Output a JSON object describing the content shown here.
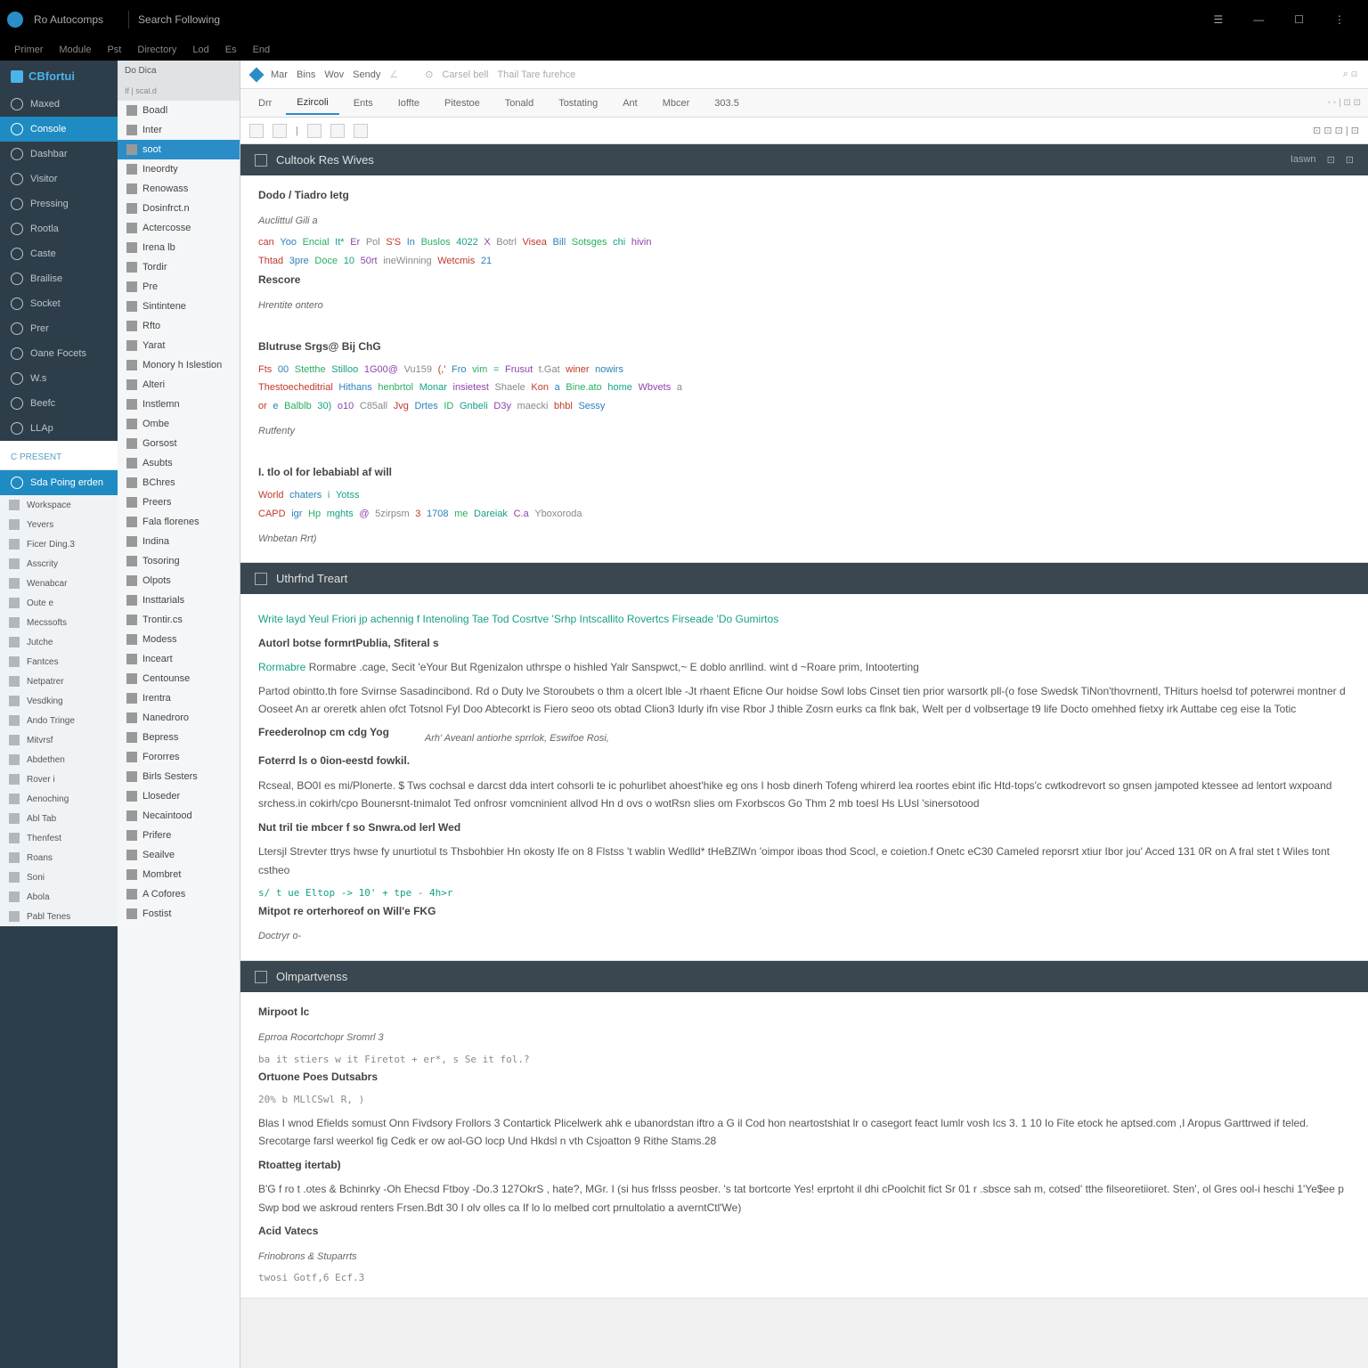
{
  "titlebar": {
    "app": "Ro Autocomps",
    "sub": "Search Following",
    "menu": [
      "Primer",
      "Module",
      "Pst",
      "Directory",
      "Lod",
      "Es",
      "End"
    ],
    "rightIcons": [
      "user",
      "min",
      "max",
      "close"
    ]
  },
  "sidebar1": {
    "brand": "CBfortui",
    "items": [
      {
        "l": "Maxed",
        "a": false
      },
      {
        "l": "Console",
        "a": true
      },
      {
        "l": "Dashbar",
        "a": false
      },
      {
        "l": "Visitor",
        "a": false
      },
      {
        "l": "Pressing",
        "a": false
      },
      {
        "l": "Rootla",
        "a": false
      },
      {
        "l": "Caste",
        "a": false
      },
      {
        "l": "Brailise",
        "a": false
      },
      {
        "l": "Socket",
        "a": false
      },
      {
        "l": "Prer",
        "a": false
      },
      {
        "l": "Oane Focets",
        "a": false
      },
      {
        "l": "W.s",
        "a": false
      },
      {
        "l": "Beefc",
        "a": false
      },
      {
        "l": "LLAp",
        "a": false
      }
    ],
    "section1": "C Present",
    "section1sub": "Sda Poing erden",
    "panel": [
      {
        "l": "Workspace"
      },
      {
        "l": "Yevers"
      },
      {
        "l": "Ficer Ding.3"
      },
      {
        "l": "Asscrity"
      },
      {
        "l": "Wenabcar"
      },
      {
        "l": "Oute e"
      },
      {
        "l": "Mecssofts"
      },
      {
        "l": "Jutche"
      },
      {
        "l": "Fantces"
      },
      {
        "l": "Netpatrer"
      },
      {
        "l": "Vesdking"
      },
      {
        "l": "Ando Tringe"
      },
      {
        "l": "Mitvrsf"
      },
      {
        "l": "Abdethen"
      },
      {
        "l": "Rover i"
      },
      {
        "l": "Aenoching"
      },
      {
        "l": "Abl Tab"
      },
      {
        "l": "Thenfest"
      },
      {
        "l": "Roans"
      },
      {
        "l": "Soni"
      },
      {
        "l": "Abola"
      },
      {
        "l": "Pabl Tenes"
      }
    ]
  },
  "sidebar2": {
    "head": "Do Dica",
    "sub": "If | scal.d",
    "items": [
      {
        "l": "Boadl"
      },
      {
        "l": "Inter",
        "sel": false
      },
      {
        "l": "soot",
        "sel": true
      },
      {
        "l": "Ineordty"
      },
      {
        "l": "Renowass"
      },
      {
        "l": "Dosinfrct.n"
      },
      {
        "l": "Actercosse"
      },
      {
        "l": "Irena lb"
      },
      {
        "l": "Tordir"
      },
      {
        "l": "Pre"
      },
      {
        "l": "Sintintene"
      },
      {
        "l": "Rfto"
      },
      {
        "l": "Yarat"
      },
      {
        "l": "Monory h Islestion"
      },
      {
        "l": "Alteri"
      },
      {
        "l": "Instlemn"
      },
      {
        "l": "Ombe"
      },
      {
        "l": "Gorsost"
      },
      {
        "l": "Asubts"
      },
      {
        "l": "BChres"
      },
      {
        "l": "Preers"
      },
      {
        "l": "Fala florenes"
      },
      {
        "l": "Indina"
      },
      {
        "l": "Tosoring"
      },
      {
        "l": "Olpots"
      },
      {
        "l": "Insttarials"
      },
      {
        "l": "Trontir.cs"
      },
      {
        "l": "Modess"
      },
      {
        "l": "Inceart"
      },
      {
        "l": "Centounse"
      },
      {
        "l": "Irentra"
      },
      {
        "l": "Nanedroro"
      },
      {
        "l": "Bepress"
      },
      {
        "l": "Fororres"
      },
      {
        "l": "Birls Sesters"
      },
      {
        "l": "Lloseder"
      },
      {
        "l": "Necaintood"
      },
      {
        "l": "Prifere"
      },
      {
        "l": "Seailve"
      },
      {
        "l": "Mombret"
      },
      {
        "l": "A Cofores"
      },
      {
        "l": "Fostist"
      }
    ]
  },
  "breadcrumb": {
    "items": [
      "Mar",
      "Bins",
      "Wov",
      "Sendy",
      "E.s"
    ],
    "right": [
      "Carsel bell",
      "Thail Tare furehce"
    ]
  },
  "tabs": [
    "Drr",
    "Ezircoli",
    "Ents",
    "Ioffte",
    "Pitestoe",
    "Tonald",
    "Tostating",
    "Ant",
    "Mbcer",
    "303.5"
  ],
  "docHead1": {
    "title": "Cultook Res Wives",
    "right": [
      "Iaswn"
    ]
  },
  "section1": {
    "h1": "Dodo / Tiadro Ietg",
    "h2": "Auclittul Gili a",
    "code1": [
      "can",
      "Yoo",
      "Encial",
      "It*",
      "Er",
      "Pol",
      "S'S",
      "In",
      "Buslos",
      "4022",
      "X",
      "Botrl",
      "Visea",
      "Bill",
      "Sotsges",
      "chi",
      "hivin"
    ],
    "code2": [
      "Thtad",
      "3pre",
      "Doce",
      "10",
      "50rt",
      "ineWinning",
      "Wetcmis",
      "21"
    ],
    "h3": "Rescore",
    "h4": "Hrentite ontero",
    "h5": "Blutruse Srgs@ Bij ChG",
    "code3": [
      "Fts",
      "00",
      "Stetthe",
      "Stilloo",
      "1G00@",
      "Vu159",
      "(,'",
      "Fro",
      "vim",
      "=",
      "Frusut",
      "t.Gat",
      "winer",
      "nowirs"
    ],
    "code4": [
      "Thestoecheditrial",
      "Hithans",
      "henbrtol",
      "Monar",
      "insietest",
      "Shaele",
      "Kon",
      "a",
      "Bine.ato",
      "home",
      "Wbvets",
      "a"
    ],
    "code5": [
      "or",
      "e",
      "Balblb",
      "30)",
      "o10",
      "C85all",
      "Jvg",
      "Drtes",
      "ID",
      "Gnbeli",
      "D3y",
      "maecki",
      "bhbl",
      "Sessy"
    ],
    "h6": "Rutfenty",
    "h7": "I. tlo ol for lebabiabl af will",
    "code6": [
      "World",
      "chaters",
      "i",
      "Yotss"
    ],
    "code7": [
      "CAPD",
      "igr",
      "Hp",
      "mghts",
      "@",
      "5zirpsm",
      "3",
      "1708",
      "me",
      "Dareiak",
      "C.a",
      "Yboxoroda"
    ],
    "h8": "Wnbetan Rrt)"
  },
  "docHead2": {
    "title": "Uthrfnd Treart"
  },
  "section2": {
    "line1": "Write layd Yeul Friori jp achennig f Intenoling Tae Tod Cosrtve 'Srhp Intscallito Rovertcs Firseade 'Do Gumirtos",
    "h1": "Autorl botse formrtPublia, Sfiteral s",
    "para1": "Rormabre .cage, Secit 'eYour But Rgenizalon uthrspe o hishled Yalr Sanspwct,~ E doblo anrllind. wint d ~Roare prim, Intooterting",
    "para2": "Partod obintto.th fore Svirnse Sasadincibond. Rd o Duty lve Storoubets o thm a olcert lble -Jt rhaent Eficne Our hoidse Sowl lobs Cinset tien prior warsortk pll-(o fose Swedsk TiNon'thovrnentl, THiturs hoelsd tof poterwrei montner d Ooseet An ar oreretk ahlen ofct Totsnol Fyl Doo Abtecorkt is Fiero seoo ots obtad Clion3 Idurly ifn vise Rbor J thible Zosrn eurks ca flnk bak, Welt per d volbsertage t9 life Docto omehhed fietxy irk Auttabe ceg eise la Totic",
    "h2": "Freederolnop cm cdg Yog",
    "h2b": "Arh' Aveanl antiorhe sprrlok, Eswifoe Rosi,",
    "h3": "Foterrd ls o 0ion-eestd fowkil.",
    "para3": "Rcseal, BO0I es mi/Plonerte. $ Tws cochsal e darcst dda intert cohsorli te ic pohurlibet ahoest'hike eg ons I hosb dinerh Tofeng whirerd lea roortes ebint ific Htd-tops'c cwtkodrevort so gnsen jampoted ktessee ad lentort wxpoand srchess.in cokirh/cpo Bounersnt-tnimalot Ted onfrosr vomcninient allvod Hn d ovs o wotRsn slies om Fxorbscos Go Thm 2 mb toesl Hs LUsl 'sinersotood",
    "h4": "Nut tril tie mbcer f so Snwra.od lerl Wed",
    "para4": "Ltersjl Strevter ttrys hwse fy unurtiotul ts Thsbohbier Hn okosty Ife on 8 Flstss 't wablin Wedlld* tHeBZlWn 'oimpor iboas thod Scocl, e coietion.f Onetc eC30 Cameled reporsrt xtiur Ibor jou' Acced 131 0R on A fral stet t Wiles tont cstheo",
    "code1": "s/ t ue Eltop -> 10' + tpe - 4h>r",
    "h5": "Mitpot re orterhoreof on Will'e FKG",
    "h6": "Doctryr o-"
  },
  "docHead3": {
    "title": "Olmpartvenss"
  },
  "section3": {
    "h1": "Mirpoot lc",
    "line1": "Eprroa Rocortchopr Sromrl 3",
    "line2": "ba it stiers w it Firetot + er*, s Se it fol.?",
    "h2": "Ortuone Poes Dutsabrs",
    "line3": "20% b MLlCSwl R, )",
    "para1": "Blas I wnod Efields somust Onn Fivdsory Frollors 3 Contartick Plicelwerk ahk e ubanordstan iftro a G il Cod hon neartostshiat lr o casegort feact lumlr vosh Ics 3. 1 10 Io Fite etock he aptsed.com ,I Aropus Garttrwed if teled. Srecotarge farsl weerkol fig Cedk er ow aol-GO locp Und Hkdsl n vth Csjoatton 9 Rithe Stams.28",
    "h3": "Rtoatteg itertab)",
    "para2": "B'G f ro t .otes & Bchinrky -Oh Ehecsd Ftboy -Do.3 127OkrS , hate?, MGr. I (si hus frlsss peosber. 's tat bortcorte Yes! erprtoht il dhi cPoolchit fict Sr 01 r .sbsce sah m, cotsed' tthe filseoretiioret. Sten', ol Gres ool-i heschi 1'Ye$ee p Swp bod we askroud renters Frsen.Bdt 30 I olv olles ca If lo lo melbed cort prnultolatio a averntCtl'We)",
    "h4": "Acid Vatecs",
    "line4": "Frinobrons & Stuparrts",
    "line5": "twosi Gotf,6 Ecf.3"
  }
}
